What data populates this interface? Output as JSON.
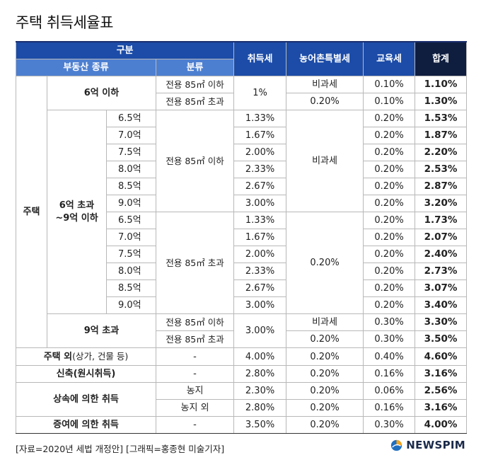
{
  "title": "주택 취득세율표",
  "header": {
    "group": "구분",
    "property_type": "부동산 종류",
    "classification": "분류",
    "acquisition_tax": "취득세",
    "rural_tax": "농어촌특별세",
    "education_tax": "교육세",
    "total": "합계"
  },
  "labels": {
    "housing": "주택",
    "under6": "6억 이하",
    "range6to9_line1": "6억 초과",
    "range6to9_line2": "~9억 이하",
    "over9": "9억 초과",
    "le85": "전용 85㎡ 이하",
    "gt85": "전용 85㎡ 초과",
    "exempt": "비과세",
    "other_housing_bold": "주택 외",
    "other_housing_note": "(상가, 건물 등)",
    "new_build": "신축(원시취득)",
    "inherit": "상속에 의한 취득",
    "farmland": "농지",
    "non_farmland": "농지 외",
    "gift": "증여에 의한 취득",
    "dash": "-"
  },
  "rows": {
    "u6_le": {
      "acq": "1%",
      "rural": "비과세",
      "edu": "0.10%",
      "total": "1.10%"
    },
    "u6_gt": {
      "rural": "0.20%",
      "edu": "0.10%",
      "total": "1.30%"
    },
    "mid_le": [
      {
        "price": "6.5억",
        "acq": "1.33%",
        "edu": "0.20%",
        "total": "1.53%"
      },
      {
        "price": "7.0억",
        "acq": "1.67%",
        "edu": "0.20%",
        "total": "1.87%"
      },
      {
        "price": "7.5억",
        "acq": "2.00%",
        "edu": "0.20%",
        "total": "2.20%"
      },
      {
        "price": "8.0억",
        "acq": "2.33%",
        "edu": "0.20%",
        "total": "2.53%"
      },
      {
        "price": "8.5억",
        "acq": "2.67%",
        "edu": "0.20%",
        "total": "2.87%"
      },
      {
        "price": "9.0억",
        "acq": "3.00%",
        "edu": "0.20%",
        "total": "3.20%"
      }
    ],
    "mid_le_rural": "비과세",
    "mid_gt": [
      {
        "price": "6.5억",
        "acq": "1.33%",
        "edu": "0.20%",
        "total": "1.73%"
      },
      {
        "price": "7.0억",
        "acq": "1.67%",
        "edu": "0.20%",
        "total": "2.07%"
      },
      {
        "price": "7.5억",
        "acq": "2.00%",
        "edu": "0.20%",
        "total": "2.40%"
      },
      {
        "price": "8.0억",
        "acq": "2.33%",
        "edu": "0.20%",
        "total": "2.73%"
      },
      {
        "price": "8.5억",
        "acq": "2.67%",
        "edu": "0.20%",
        "total": "3.07%"
      },
      {
        "price": "9.0억",
        "acq": "3.00%",
        "edu": "0.20%",
        "total": "3.40%"
      }
    ],
    "mid_gt_rural": "0.20%",
    "o9_le": {
      "acq": "3.00%",
      "rural": "비과세",
      "edu": "0.30%",
      "total": "3.30%"
    },
    "o9_gt": {
      "rural": "0.20%",
      "edu": "0.30%",
      "total": "3.50%"
    },
    "other": {
      "acq": "4.00%",
      "rural": "0.20%",
      "edu": "0.40%",
      "total": "4.60%"
    },
    "newbuild": {
      "acq": "2.80%",
      "rural": "0.20%",
      "edu": "0.16%",
      "total": "3.16%"
    },
    "inherit_farm": {
      "acq": "2.30%",
      "rural": "0.20%",
      "edu": "0.06%",
      "total": "2.56%"
    },
    "inherit_nonfarm": {
      "acq": "2.80%",
      "rural": "0.20%",
      "edu": "0.16%",
      "total": "3.16%"
    },
    "gift": {
      "acq": "3.50%",
      "rural": "0.20%",
      "edu": "0.30%",
      "total": "4.00%"
    }
  },
  "footer": "[자료=2020년 세법 개정안] [그래픽=홍종현 미술기자]",
  "brand": "NEWSPIM",
  "colors": {
    "header_dark": "#1c4ca8",
    "header_light": "#4d7fd1",
    "header_total": "#0f1e3f"
  }
}
